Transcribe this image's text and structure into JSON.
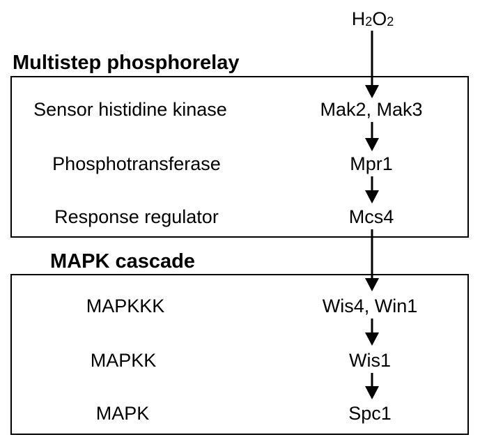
{
  "stimulus": {
    "h": "H",
    "sub1": "2",
    "o": "O",
    "sub2": "2"
  },
  "sections": [
    {
      "title": "Multistep phosphorelay",
      "rows": [
        {
          "role": "Sensor histidine kinase",
          "protein": "Mak2, Mak3"
        },
        {
          "role": "Phosphotransferase",
          "protein": "Mpr1"
        },
        {
          "role": "Response regulator",
          "protein": "Mcs4"
        }
      ]
    },
    {
      "title": "MAPK cascade",
      "rows": [
        {
          "role": "MAPKKK",
          "protein": "Wis4, Win1"
        },
        {
          "role": "MAPKK",
          "protein": "Wis1"
        },
        {
          "role": "MAPK",
          "protein": "Spc1"
        }
      ]
    }
  ],
  "colors": {
    "line": "#000000",
    "background": "#ffffff"
  }
}
